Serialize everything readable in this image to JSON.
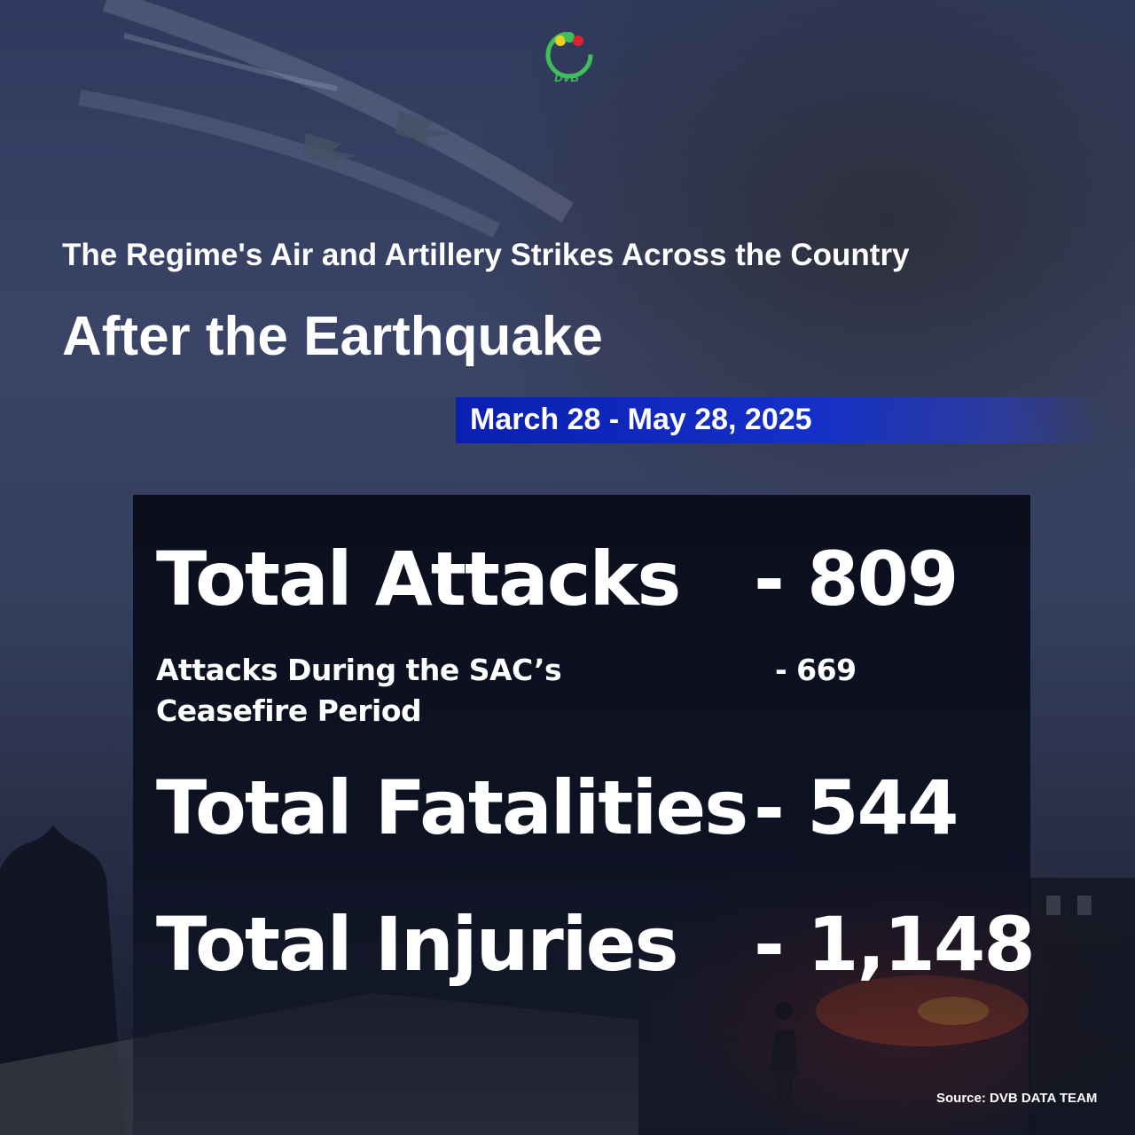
{
  "brand": {
    "logo_text": "DVB"
  },
  "header": {
    "subtitle": "The Regime's Air and Artillery Strikes Across the Country",
    "title": "After the Earthquake",
    "date_range": "March 28 - May 28, 2025"
  },
  "stats": {
    "total_attacks": {
      "label": "Total Attacks",
      "value": "- 809"
    },
    "ceasefire_attacks": {
      "label_line1": "Attacks During the SAC’s",
      "label_line2": "Ceasefire Period",
      "value": "- 669"
    },
    "total_fatalities": {
      "label": "Total Fatalities",
      "value": "- 544"
    },
    "total_injuries": {
      "label": "Total Injuries",
      "value": "- 1,148"
    }
  },
  "footer": {
    "source": "Source: DVB DATA TEAM"
  },
  "colors": {
    "date_bar": "#1530c8",
    "logo_green": "#3fbf5a",
    "fire": "#ff5a2a"
  }
}
